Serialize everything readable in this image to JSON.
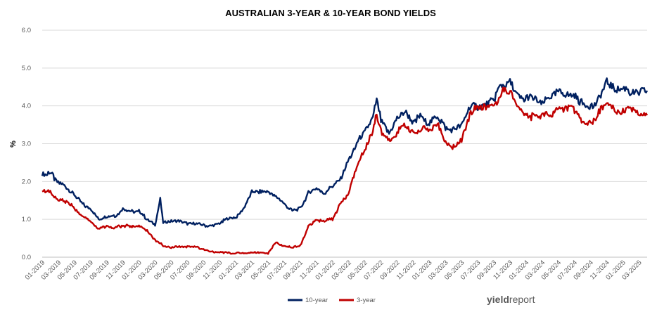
{
  "chart_data": {
    "type": "line",
    "title": "AUSTRALIAN 3-YEAR & 10-YEAR BOND YIELDS",
    "ylabel": "%",
    "xlabel": "",
    "ylim": [
      0,
      6
    ],
    "yticks": [
      "0.0",
      "1.0",
      "2.0",
      "3.0",
      "4.0",
      "5.0",
      "6.0"
    ],
    "grid": true,
    "legend_position": "bottom",
    "x_tick_labels": [
      "01-2019",
      "03-2019",
      "05-2019",
      "07-2019",
      "09-2019",
      "11-2019",
      "01-2020",
      "03-2020",
      "05-2020",
      "07-2020",
      "09-2020",
      "11-2020",
      "01-2021",
      "03-2021",
      "05-2021",
      "07-2021",
      "09-2021",
      "11-2021",
      "01-2022",
      "03-2022",
      "05-2022",
      "07-2022",
      "09-2022",
      "11-2022",
      "01-2023",
      "03-2023",
      "05-2023",
      "07-2023",
      "09-2023",
      "11-2023",
      "01-2024",
      "03-2024",
      "05-2024",
      "07-2024",
      "09-2024",
      "11-2024",
      "01-2025",
      "03-2025"
    ],
    "x_range": [
      "2019-01",
      "2025-04"
    ],
    "series": [
      {
        "name": "10-year",
        "color": "#002060",
        "points": [
          [
            "2019-01",
            2.25
          ],
          [
            "2019-02",
            2.2
          ],
          [
            "2019-03",
            2.0
          ],
          [
            "2019-04",
            1.85
          ],
          [
            "2019-05",
            1.65
          ],
          [
            "2019-06",
            1.4
          ],
          [
            "2019-07",
            1.3
          ],
          [
            "2019-08",
            1.0
          ],
          [
            "2019-09",
            1.05
          ],
          [
            "2019-10",
            1.1
          ],
          [
            "2019-11",
            1.25
          ],
          [
            "2019-12",
            1.2
          ],
          [
            "2020-01",
            1.2
          ],
          [
            "2020-02",
            1.0
          ],
          [
            "2020-03",
            0.85
          ],
          [
            "2020-03-20",
            1.55
          ],
          [
            "2020-04",
            0.9
          ],
          [
            "2020-05",
            0.95
          ],
          [
            "2020-06",
            0.95
          ],
          [
            "2020-07",
            0.9
          ],
          [
            "2020-08",
            0.9
          ],
          [
            "2020-09",
            0.85
          ],
          [
            "2020-10",
            0.85
          ],
          [
            "2020-11",
            0.9
          ],
          [
            "2020-12",
            1.0
          ],
          [
            "2021-01",
            1.05
          ],
          [
            "2021-02",
            1.3
          ],
          [
            "2021-03",
            1.75
          ],
          [
            "2021-04",
            1.7
          ],
          [
            "2021-05",
            1.7
          ],
          [
            "2021-06",
            1.6
          ],
          [
            "2021-07",
            1.4
          ],
          [
            "2021-08",
            1.2
          ],
          [
            "2021-09",
            1.3
          ],
          [
            "2021-10",
            1.7
          ],
          [
            "2021-11",
            1.8
          ],
          [
            "2021-12",
            1.7
          ],
          [
            "2022-01",
            1.9
          ],
          [
            "2022-02",
            2.1
          ],
          [
            "2022-03",
            2.6
          ],
          [
            "2022-04",
            3.0
          ],
          [
            "2022-05",
            3.3
          ],
          [
            "2022-06",
            3.7
          ],
          [
            "2022-06-15",
            4.1
          ],
          [
            "2022-07",
            3.6
          ],
          [
            "2022-08",
            3.3
          ],
          [
            "2022-09",
            3.7
          ],
          [
            "2022-10",
            3.9
          ],
          [
            "2022-11",
            3.6
          ],
          [
            "2022-12",
            3.7
          ],
          [
            "2023-01",
            3.6
          ],
          [
            "2023-02",
            3.8
          ],
          [
            "2023-03",
            3.4
          ],
          [
            "2023-04",
            3.4
          ],
          [
            "2023-05",
            3.5
          ],
          [
            "2023-06",
            4.0
          ],
          [
            "2023-07",
            4.0
          ],
          [
            "2023-08",
            4.1
          ],
          [
            "2023-09",
            4.2
          ],
          [
            "2023-10",
            4.6
          ],
          [
            "2023-11",
            4.6
          ],
          [
            "2023-12",
            4.3
          ],
          [
            "2024-01",
            4.2
          ],
          [
            "2024-02",
            4.2
          ],
          [
            "2024-03",
            4.1
          ],
          [
            "2024-04",
            4.3
          ],
          [
            "2024-05",
            4.4
          ],
          [
            "2024-06",
            4.3
          ],
          [
            "2024-07",
            4.3
          ],
          [
            "2024-08",
            4.0
          ],
          [
            "2024-09",
            3.95
          ],
          [
            "2024-10",
            4.2
          ],
          [
            "2024-11",
            4.6
          ],
          [
            "2024-12",
            4.4
          ],
          [
            "2025-01",
            4.4
          ],
          [
            "2025-02",
            4.4
          ],
          [
            "2025-03",
            4.4
          ],
          [
            "2025-04",
            4.4
          ]
        ]
      },
      {
        "name": "3-year",
        "color": "#c00000",
        "points": [
          [
            "2019-01",
            1.75
          ],
          [
            "2019-02",
            1.7
          ],
          [
            "2019-03",
            1.55
          ],
          [
            "2019-04",
            1.45
          ],
          [
            "2019-05",
            1.3
          ],
          [
            "2019-06",
            1.05
          ],
          [
            "2019-07",
            0.95
          ],
          [
            "2019-08",
            0.75
          ],
          [
            "2019-09",
            0.8
          ],
          [
            "2019-10",
            0.75
          ],
          [
            "2019-11",
            0.85
          ],
          [
            "2019-12",
            0.8
          ],
          [
            "2020-01",
            0.8
          ],
          [
            "2020-02",
            0.7
          ],
          [
            "2020-03",
            0.45
          ],
          [
            "2020-04",
            0.3
          ],
          [
            "2020-05",
            0.27
          ],
          [
            "2020-06",
            0.27
          ],
          [
            "2020-07",
            0.27
          ],
          [
            "2020-08",
            0.27
          ],
          [
            "2020-09",
            0.2
          ],
          [
            "2020-10",
            0.15
          ],
          [
            "2020-11",
            0.12
          ],
          [
            "2020-12",
            0.12
          ],
          [
            "2021-01",
            0.11
          ],
          [
            "2021-02",
            0.12
          ],
          [
            "2021-03",
            0.12
          ],
          [
            "2021-04",
            0.12
          ],
          [
            "2021-05",
            0.1
          ],
          [
            "2021-06",
            0.4
          ],
          [
            "2021-07",
            0.3
          ],
          [
            "2021-08",
            0.25
          ],
          [
            "2021-09",
            0.3
          ],
          [
            "2021-10",
            0.8
          ],
          [
            "2021-11",
            1.0
          ],
          [
            "2021-12",
            0.95
          ],
          [
            "2022-01",
            1.0
          ],
          [
            "2022-02",
            1.4
          ],
          [
            "2022-03",
            1.7
          ],
          [
            "2022-04",
            2.4
          ],
          [
            "2022-05",
            2.9
          ],
          [
            "2022-06",
            3.4
          ],
          [
            "2022-06-15",
            3.7
          ],
          [
            "2022-07",
            3.3
          ],
          [
            "2022-08",
            3.1
          ],
          [
            "2022-09",
            3.3
          ],
          [
            "2022-10",
            3.5
          ],
          [
            "2022-11",
            3.3
          ],
          [
            "2022-12",
            3.4
          ],
          [
            "2023-01",
            3.3
          ],
          [
            "2023-02",
            3.6
          ],
          [
            "2023-03",
            3.0
          ],
          [
            "2023-04",
            2.95
          ],
          [
            "2023-05",
            3.1
          ],
          [
            "2023-06",
            3.8
          ],
          [
            "2023-07",
            4.0
          ],
          [
            "2023-08",
            3.9
          ],
          [
            "2023-09",
            4.0
          ],
          [
            "2023-10",
            4.4
          ],
          [
            "2023-11",
            4.3
          ],
          [
            "2023-12",
            4.0
          ],
          [
            "2024-01",
            3.8
          ],
          [
            "2024-02",
            3.7
          ],
          [
            "2024-03",
            3.7
          ],
          [
            "2024-04",
            3.8
          ],
          [
            "2024-05",
            3.9
          ],
          [
            "2024-06",
            4.0
          ],
          [
            "2024-07",
            3.9
          ],
          [
            "2024-08",
            3.55
          ],
          [
            "2024-09",
            3.55
          ],
          [
            "2024-10",
            3.8
          ],
          [
            "2024-11",
            4.1
          ],
          [
            "2024-12",
            3.9
          ],
          [
            "2025-01",
            3.9
          ],
          [
            "2025-02",
            3.9
          ],
          [
            "2025-03",
            3.8
          ],
          [
            "2025-04",
            3.75
          ]
        ]
      }
    ]
  },
  "branding": {
    "logo_bold": "yield",
    "logo_light": "report"
  }
}
